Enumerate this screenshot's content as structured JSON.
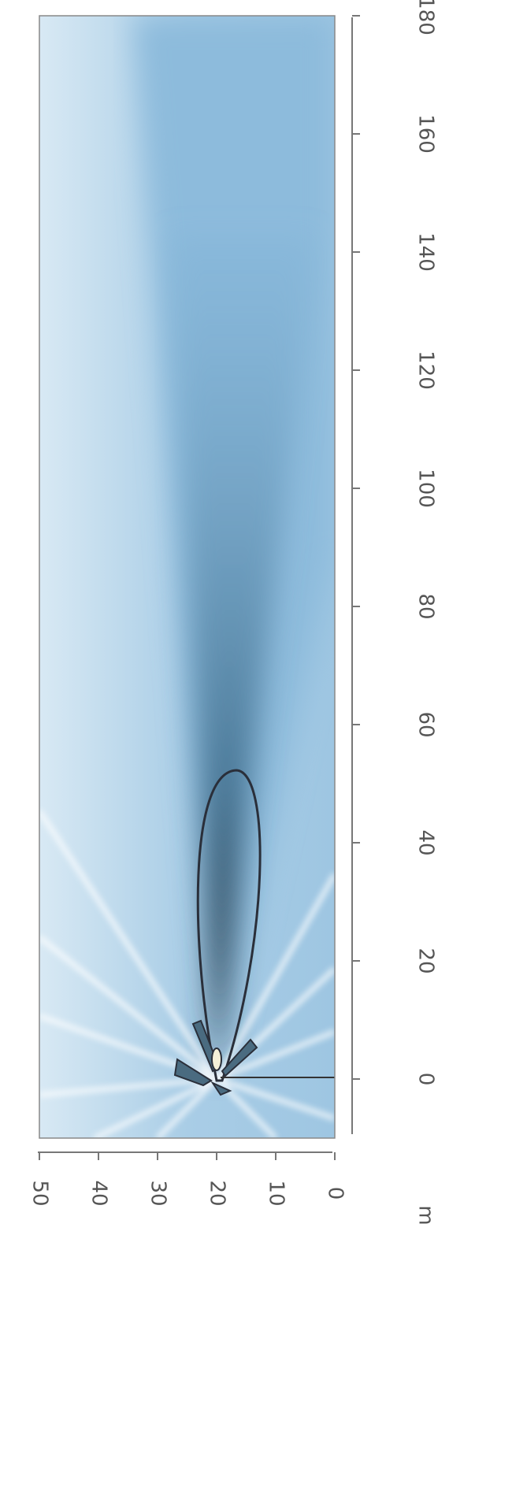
{
  "chart_data": {
    "type": "heatmap",
    "x_label": "m",
    "xlim": [
      50,
      0
    ],
    "xticks": [
      50,
      40,
      30,
      20,
      10,
      0
    ],
    "ylim": [
      -10,
      180
    ],
    "yticks": [
      0,
      20,
      40,
      60,
      80,
      100,
      120,
      140,
      160,
      180
    ]
  }
}
